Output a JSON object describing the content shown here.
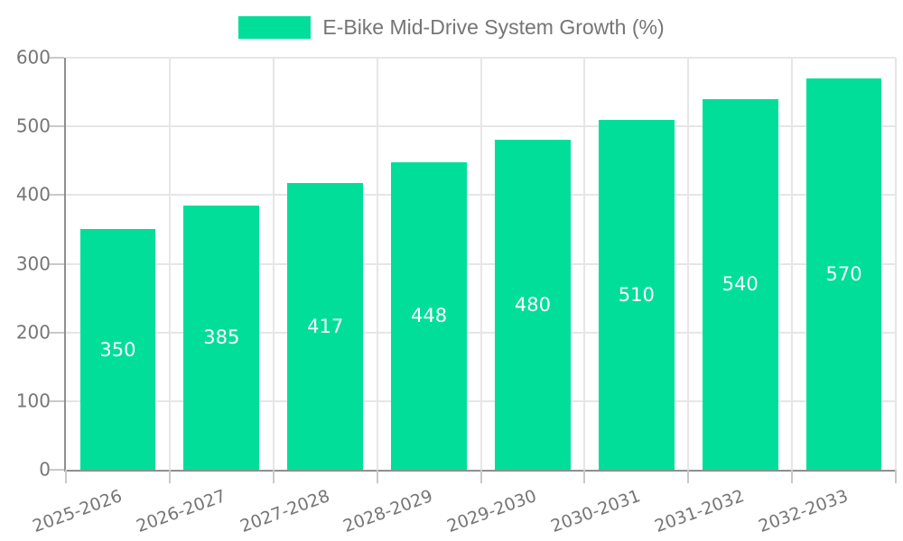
{
  "legend": {
    "label": "E-Bike Mid-Drive System Growth (%)"
  },
  "chart_data": {
    "type": "bar",
    "title": "E-Bike Mid-Drive System Growth (%)",
    "categories": [
      "2025-2026",
      "2026-2027",
      "2027-2028",
      "2028-2029",
      "2029-2030",
      "2030-2031",
      "2031-2032",
      "2032-2033"
    ],
    "values": [
      350,
      385,
      417,
      448,
      480,
      510,
      540,
      570
    ],
    "xlabel": "",
    "ylabel": "",
    "ylim": [
      0,
      600
    ],
    "yticks": [
      0,
      100,
      200,
      300,
      400,
      500,
      600
    ],
    "grid": true,
    "legend_position": "top",
    "bar_labels_inside": true,
    "colors": {
      "bar": "#00DE9A",
      "axis": "#8f8f8f",
      "grid": "#e6e6e6",
      "tick": "#c9c9c9",
      "text": "#757575",
      "value_label": "#ffffff",
      "background": "#ffffff"
    }
  }
}
